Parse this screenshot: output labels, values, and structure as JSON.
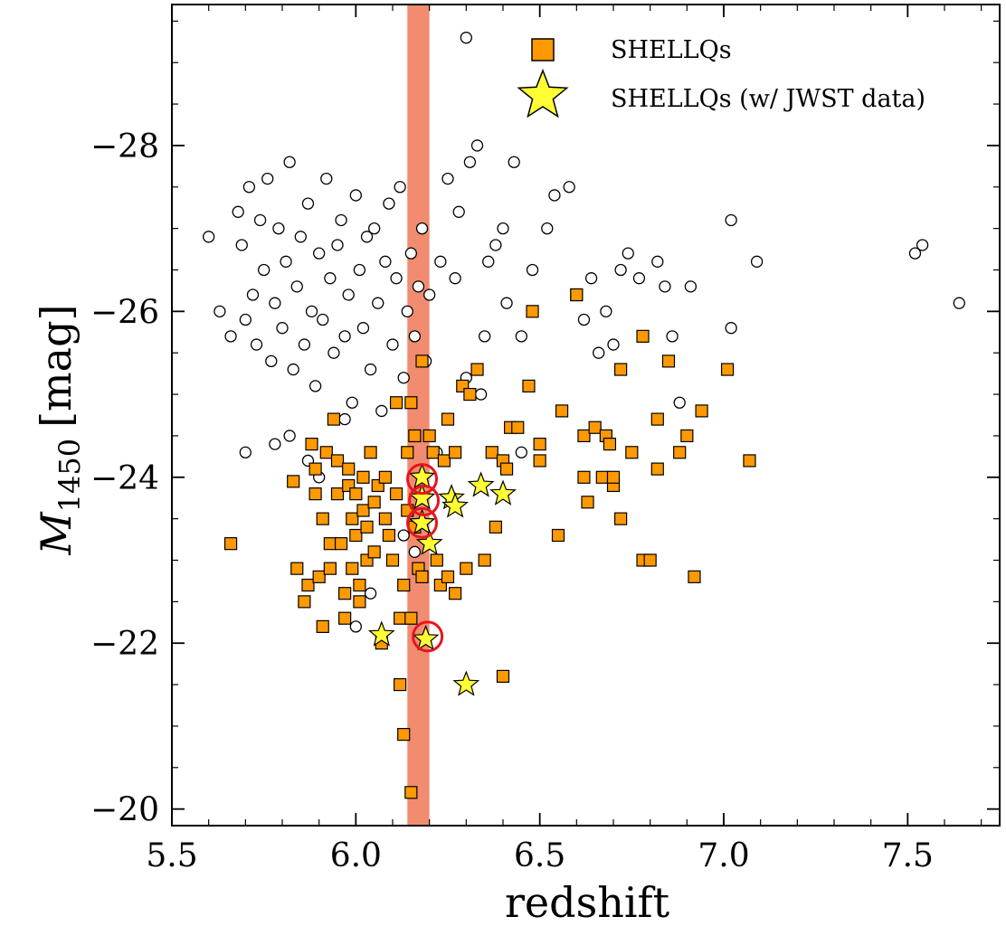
{
  "chart_data": {
    "type": "scatter",
    "xlabel": "redshift",
    "ylabel": "M1450 [mag]",
    "ylabel_main": "M",
    "ylabel_sub": "1450",
    "ylabel_unit": "[mag]",
    "xlim": [
      5.5,
      7.75
    ],
    "ylim": [
      -19.8,
      -29.7
    ],
    "y_inverted": true,
    "grid": false,
    "legend_position": "top-right",
    "x_ticks": [
      5.5,
      6.0,
      6.5,
      7.0,
      7.5
    ],
    "x_tick_labels": [
      "5.5",
      "6.0",
      "6.5",
      "7.0",
      "7.5"
    ],
    "y_ticks": [
      -28,
      -26,
      -24,
      -22,
      -20
    ],
    "y_tick_labels": [
      "−28",
      "−26",
      "−24",
      "−22",
      "−20"
    ],
    "band": {
      "x_range": [
        6.14,
        6.2
      ],
      "color": "#f08060"
    },
    "colors": {
      "shellqs": "#ff9900",
      "jwst": "#ffff33",
      "highlight": "#e8141c",
      "other": "#ffffff"
    },
    "legend": [
      {
        "label": "SHELLQs",
        "marker": "square"
      },
      {
        "label": "SHELLQs (w/ JWST data)",
        "marker": "star"
      }
    ],
    "series": [
      {
        "marker": "circle",
        "points": [
          [
            5.6,
            -26.9
          ],
          [
            5.63,
            -26.0
          ],
          [
            5.66,
            -25.7
          ],
          [
            5.68,
            -27.2
          ],
          [
            5.69,
            -26.8
          ],
          [
            5.7,
            -25.9
          ],
          [
            5.71,
            -27.5
          ],
          [
            5.72,
            -26.2
          ],
          [
            5.73,
            -25.6
          ],
          [
            5.74,
            -27.1
          ],
          [
            5.75,
            -26.5
          ],
          [
            5.76,
            -27.6
          ],
          [
            5.77,
            -25.4
          ],
          [
            5.78,
            -26.1
          ],
          [
            5.79,
            -27.0
          ],
          [
            5.8,
            -25.8
          ],
          [
            5.81,
            -26.6
          ],
          [
            5.82,
            -27.8
          ],
          [
            5.83,
            -25.3
          ],
          [
            5.84,
            -26.3
          ],
          [
            5.85,
            -26.9
          ],
          [
            5.86,
            -25.6
          ],
          [
            5.87,
            -27.3
          ],
          [
            5.88,
            -26.0
          ],
          [
            5.89,
            -25.1
          ],
          [
            5.9,
            -26.7
          ],
          [
            5.91,
            -25.9
          ],
          [
            5.92,
            -27.6
          ],
          [
            5.93,
            -26.4
          ],
          [
            5.94,
            -25.5
          ],
          [
            5.95,
            -26.8
          ],
          [
            5.96,
            -27.1
          ],
          [
            5.97,
            -25.7
          ],
          [
            5.98,
            -26.2
          ],
          [
            5.99,
            -24.9
          ],
          [
            6.0,
            -27.4
          ],
          [
            6.01,
            -26.5
          ],
          [
            6.02,
            -25.8
          ],
          [
            6.03,
            -26.9
          ],
          [
            6.04,
            -25.3
          ],
          [
            6.05,
            -27.0
          ],
          [
            6.06,
            -26.1
          ],
          [
            6.07,
            -24.8
          ],
          [
            6.08,
            -26.6
          ],
          [
            6.09,
            -27.3
          ],
          [
            6.1,
            -25.6
          ],
          [
            6.11,
            -26.4
          ],
          [
            6.12,
            -27.5
          ],
          [
            6.13,
            -25.2
          ],
          [
            6.14,
            -26.0
          ],
          [
            6.15,
            -26.7
          ],
          [
            6.16,
            -25.7
          ],
          [
            6.17,
            -26.3
          ],
          [
            6.18,
            -27.0
          ],
          [
            6.19,
            -25.4
          ],
          [
            6.2,
            -26.2
          ],
          [
            6.22,
            -24.3
          ],
          [
            6.23,
            -26.6
          ],
          [
            6.25,
            -27.6
          ],
          [
            6.27,
            -26.4
          ],
          [
            6.28,
            -27.2
          ],
          [
            6.3,
            -29.3
          ],
          [
            6.31,
            -27.8
          ],
          [
            6.33,
            -28.0
          ],
          [
            6.35,
            -25.7
          ],
          [
            6.36,
            -26.6
          ],
          [
            6.38,
            -26.8
          ],
          [
            6.4,
            -27.0
          ],
          [
            6.41,
            -26.1
          ],
          [
            6.43,
            -27.8
          ],
          [
            6.45,
            -25.7
          ],
          [
            6.48,
            -26.5
          ],
          [
            6.52,
            -27.0
          ],
          [
            6.54,
            -27.4
          ],
          [
            6.58,
            -27.5
          ],
          [
            6.62,
            -25.9
          ],
          [
            6.64,
            -26.4
          ],
          [
            6.66,
            -25.5
          ],
          [
            6.68,
            -26.0
          ],
          [
            6.7,
            -25.6
          ],
          [
            6.72,
            -26.5
          ],
          [
            6.74,
            -26.7
          ],
          [
            6.77,
            -26.4
          ],
          [
            6.82,
            -26.6
          ],
          [
            6.84,
            -26.3
          ],
          [
            6.86,
            -25.7
          ],
          [
            6.88,
            -24.9
          ],
          [
            6.91,
            -26.3
          ],
          [
            7.02,
            -27.1
          ],
          [
            7.02,
            -25.8
          ],
          [
            7.09,
            -26.6
          ],
          [
            7.52,
            -26.7
          ],
          [
            7.54,
            -26.8
          ],
          [
            7.64,
            -26.1
          ],
          [
            5.7,
            -24.3
          ],
          [
            5.78,
            -24.4
          ],
          [
            5.82,
            -24.5
          ],
          [
            5.87,
            -24.2
          ],
          [
            5.9,
            -24.0
          ],
          [
            5.97,
            -24.7
          ],
          [
            6.04,
            -22.6
          ],
          [
            6.0,
            -22.2
          ],
          [
            6.13,
            -23.3
          ],
          [
            6.16,
            -23.1
          ],
          [
            6.3,
            -25.2
          ],
          [
            6.34,
            -25.0
          ],
          [
            6.45,
            -24.3
          ]
        ]
      },
      {
        "name": "SHELLQs",
        "marker": "square",
        "points": [
          [
            5.66,
            -23.2
          ],
          [
            5.83,
            -23.95
          ],
          [
            5.84,
            -22.9
          ],
          [
            5.86,
            -22.5
          ],
          [
            5.87,
            -22.7
          ],
          [
            5.88,
            -24.4
          ],
          [
            5.89,
            -24.1
          ],
          [
            5.89,
            -23.8
          ],
          [
            5.9,
            -22.8
          ],
          [
            5.91,
            -23.5
          ],
          [
            5.91,
            -22.2
          ],
          [
            5.92,
            -24.3
          ],
          [
            5.93,
            -23.2
          ],
          [
            5.93,
            -22.9
          ],
          [
            5.94,
            -24.7
          ],
          [
            5.95,
            -24.2
          ],
          [
            5.95,
            -23.8
          ],
          [
            5.96,
            -23.2
          ],
          [
            5.97,
            -22.3
          ],
          [
            5.97,
            -22.6
          ],
          [
            5.98,
            -24.1
          ],
          [
            5.98,
            -23.9
          ],
          [
            5.99,
            -23.5
          ],
          [
            5.99,
            -22.9
          ],
          [
            6.0,
            -23.8
          ],
          [
            6.0,
            -23.3
          ],
          [
            6.01,
            -22.7
          ],
          [
            6.01,
            -22.5
          ],
          [
            6.02,
            -24.0
          ],
          [
            6.02,
            -23.6
          ],
          [
            6.03,
            -23.4
          ],
          [
            6.03,
            -23.0
          ],
          [
            6.04,
            -24.3
          ],
          [
            6.05,
            -23.7
          ],
          [
            6.05,
            -23.1
          ],
          [
            6.06,
            -23.9
          ],
          [
            6.07,
            -22.0
          ],
          [
            6.08,
            -24.0
          ],
          [
            6.08,
            -23.5
          ],
          [
            6.09,
            -23.3
          ],
          [
            6.1,
            -23.0
          ],
          [
            6.11,
            -23.8
          ],
          [
            6.11,
            -24.9
          ],
          [
            6.12,
            -22.3
          ],
          [
            6.12,
            -21.5
          ],
          [
            6.13,
            -22.7
          ],
          [
            6.13,
            -20.9
          ],
          [
            6.14,
            -24.3
          ],
          [
            6.14,
            -23.6
          ],
          [
            6.15,
            -24.9
          ],
          [
            6.15,
            -22.3
          ],
          [
            6.15,
            -20.2
          ],
          [
            6.16,
            -24.5
          ],
          [
            6.16,
            -23.4
          ],
          [
            6.17,
            -22.9
          ],
          [
            6.18,
            -22.8
          ],
          [
            6.18,
            -25.4
          ],
          [
            6.2,
            -24.5
          ],
          [
            6.21,
            -24.3
          ],
          [
            6.22,
            -23.0
          ],
          [
            6.23,
            -22.7
          ],
          [
            6.24,
            -24.2
          ],
          [
            6.25,
            -24.7
          ],
          [
            6.25,
            -22.8
          ],
          [
            6.27,
            -24.3
          ],
          [
            6.27,
            -22.6
          ],
          [
            6.29,
            -25.1
          ],
          [
            6.3,
            -22.9
          ],
          [
            6.31,
            -25.0
          ],
          [
            6.33,
            -25.3
          ],
          [
            6.35,
            -23.0
          ],
          [
            6.37,
            -24.3
          ],
          [
            6.38,
            -23.4
          ],
          [
            6.4,
            -24.2
          ],
          [
            6.41,
            -24.1
          ],
          [
            6.42,
            -24.6
          ],
          [
            6.4,
            -21.6
          ],
          [
            6.44,
            -24.6
          ],
          [
            6.47,
            -25.1
          ],
          [
            6.48,
            -26.0
          ],
          [
            6.5,
            -24.4
          ],
          [
            6.5,
            -24.2
          ],
          [
            6.55,
            -23.3
          ],
          [
            6.56,
            -24.8
          ],
          [
            6.6,
            -26.2
          ],
          [
            6.62,
            -24.5
          ],
          [
            6.62,
            -24.0
          ],
          [
            6.63,
            -23.7
          ],
          [
            6.65,
            -24.6
          ],
          [
            6.67,
            -24.0
          ],
          [
            6.68,
            -24.5
          ],
          [
            6.69,
            -24.4
          ],
          [
            6.7,
            -23.9
          ],
          [
            6.7,
            -24.0
          ],
          [
            6.72,
            -23.5
          ],
          [
            6.72,
            -25.3
          ],
          [
            6.75,
            -24.3
          ],
          [
            6.78,
            -23.0
          ],
          [
            6.8,
            -23.0
          ],
          [
            6.82,
            -24.1
          ],
          [
            6.82,
            -24.7
          ],
          [
            6.85,
            -25.4
          ],
          [
            6.88,
            -24.3
          ],
          [
            6.9,
            -24.5
          ],
          [
            6.92,
            -22.8
          ],
          [
            6.94,
            -24.8
          ],
          [
            7.01,
            -25.3
          ],
          [
            7.07,
            -24.2
          ],
          [
            6.78,
            -25.7
          ],
          [
            6.6,
            -26.2
          ]
        ]
      },
      {
        "name": "SHELLQs (w/ JWST data)",
        "marker": "star",
        "points": [
          [
            6.07,
            -22.1
          ],
          [
            6.18,
            -24.0
          ],
          [
            6.18,
            -23.75
          ],
          [
            6.18,
            -23.45
          ],
          [
            6.19,
            -22.05
          ],
          [
            6.2,
            -23.2
          ],
          [
            6.26,
            -23.75
          ],
          [
            6.27,
            -23.65
          ],
          [
            6.34,
            -23.9
          ],
          [
            6.4,
            -23.8
          ],
          [
            6.3,
            -21.5
          ]
        ]
      },
      {
        "marker": "open-circle-highlight",
        "points": [
          [
            6.18,
            -23.98
          ],
          [
            6.185,
            -23.72
          ],
          [
            6.18,
            -23.45
          ],
          [
            6.195,
            -22.08
          ]
        ]
      }
    ]
  }
}
